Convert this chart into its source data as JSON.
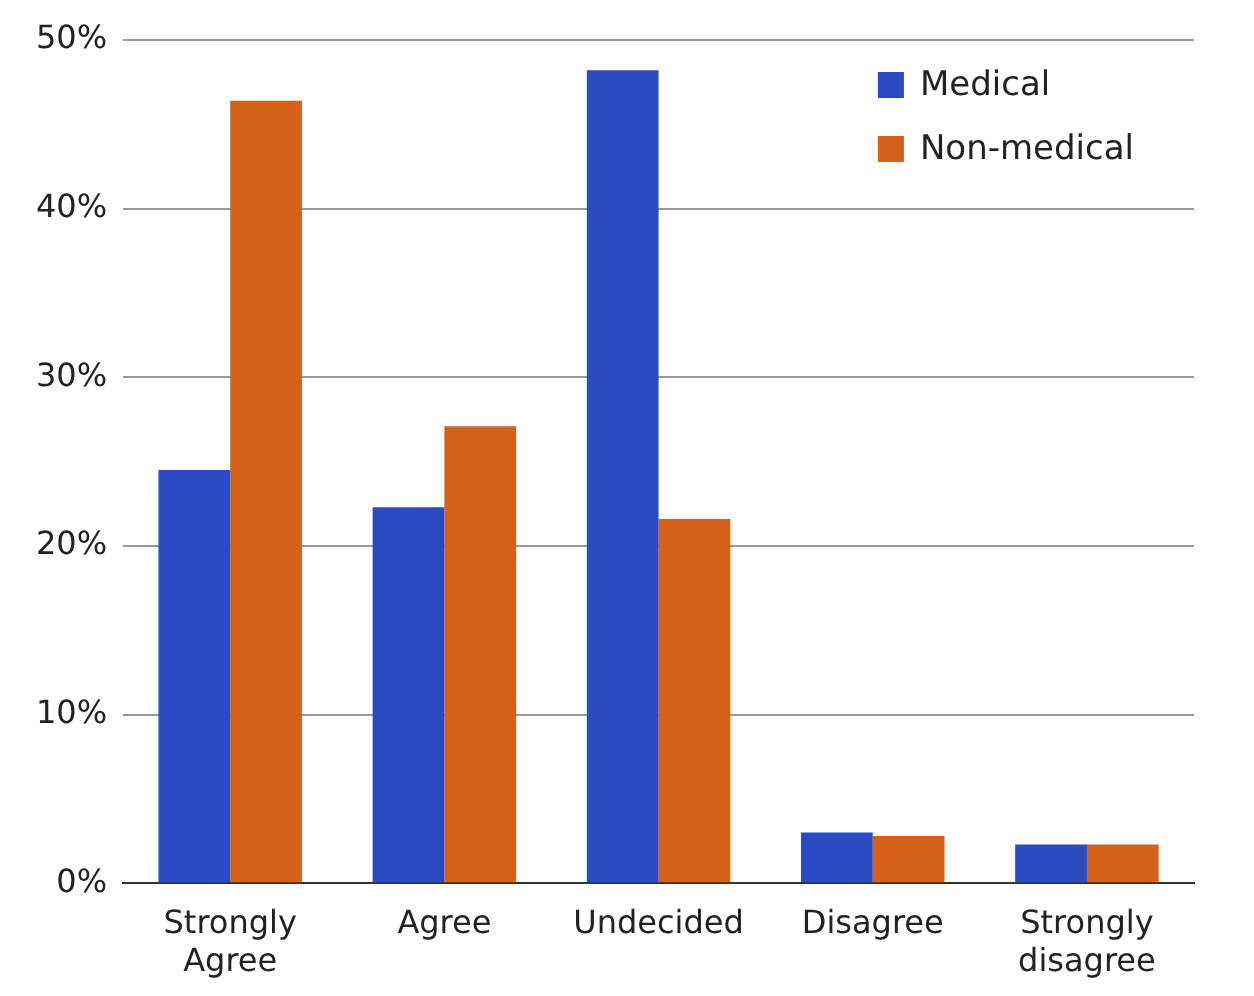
{
  "chart_data": {
    "type": "bar",
    "categories": [
      "Strongly Agree",
      "Agree",
      "Undecided",
      "Disagree",
      "Strongly disagree"
    ],
    "series": [
      {
        "name": "Medical",
        "color": "#2b4bc3",
        "values": [
          24.5,
          22.3,
          48.2,
          3.0,
          2.3
        ]
      },
      {
        "name": "Non-medical",
        "color": "#d4621a",
        "values": [
          46.4,
          27.1,
          21.6,
          2.8,
          2.3
        ]
      }
    ],
    "ylim": [
      0,
      50
    ],
    "yticks": [
      {
        "value": 0,
        "label": "0%"
      },
      {
        "value": 10,
        "label": "10%"
      },
      {
        "value": 20,
        "label": "20%"
      },
      {
        "value": 30,
        "label": "30%"
      },
      {
        "value": 40,
        "label": "40%"
      },
      {
        "value": 50,
        "label": "50%"
      }
    ],
    "grid": "y",
    "legend": "top right"
  }
}
